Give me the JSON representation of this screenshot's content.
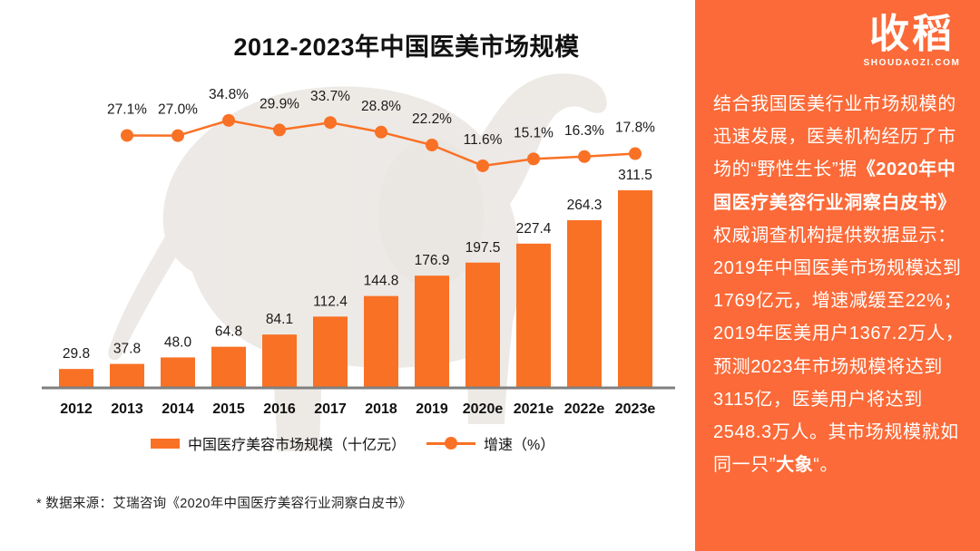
{
  "colors": {
    "accent_orange": "#F97125",
    "panel_orange": "#FB6A38",
    "axis_gray": "#808080",
    "text_dark": "#1A1A1A",
    "white": "#FFFFFF"
  },
  "chart_data": {
    "type": "bar",
    "title": "2012-2023年中国医美市场规模",
    "categories": [
      "2012",
      "2013",
      "2014",
      "2015",
      "2016",
      "2017",
      "2018",
      "2019",
      "2020e",
      "2021e",
      "2022e",
      "2023e"
    ],
    "series": [
      {
        "name": "中国医疗美容市场规模（十亿元）",
        "type": "bar",
        "values": [
          29.8,
          37.8,
          48.0,
          64.8,
          84.1,
          112.4,
          144.8,
          176.9,
          197.5,
          227.4,
          264.3,
          311.5
        ],
        "labels": [
          "29.8",
          "37.8",
          "48.0",
          "64.8",
          "84.1",
          "112.4",
          "144.8",
          "176.9",
          "197.5",
          "227.4",
          "264.3",
          "311.5"
        ]
      },
      {
        "name": "增速（%）",
        "type": "line",
        "starts_at_category": "2013",
        "values": [
          27.1,
          27.0,
          34.8,
          29.9,
          33.7,
          28.8,
          22.2,
          11.6,
          15.1,
          16.3,
          17.8
        ],
        "labels": [
          "27.1%",
          "27.0%",
          "34.8%",
          "29.9%",
          "33.7%",
          "28.8%",
          "22.2%",
          "11.6%",
          "15.1%",
          "16.3%",
          "17.8%"
        ]
      }
    ],
    "xlabel": "",
    "ylabel": "",
    "grid": false,
    "legend_position": "bottom"
  },
  "legend": {
    "bar_label": "中国医疗美容市场规模（十亿元）",
    "line_label": "增速（%）"
  },
  "footnote": "* 数据来源：艾瑞咨询《2020年中国医疗美容行业洞察白皮书》",
  "side_panel": {
    "brand": {
      "name": "收稻",
      "domain": "SHOUDAOZI.COM"
    },
    "paragraph_segments": [
      {
        "text": "结合我国医美行业市场规模的迅速发展，医美机构经历了市场的“野性生长”据",
        "bold": false
      },
      {
        "text": "《2020年中国医疗美容行业洞察白皮书》",
        "bold": true
      },
      {
        "text": "权威调查机构提供数据显示：2019年中国医美市场规模达到1769亿元，增速减缓至22%；2019年医美用户1367.2万人，预测2023年市场规模将达到3115亿，医美用户将达到2548.3万人。其市场规模就如同一只”",
        "bold": false
      },
      {
        "text": "大象",
        "bold": true
      },
      {
        "text": "“。",
        "bold": false
      }
    ]
  }
}
